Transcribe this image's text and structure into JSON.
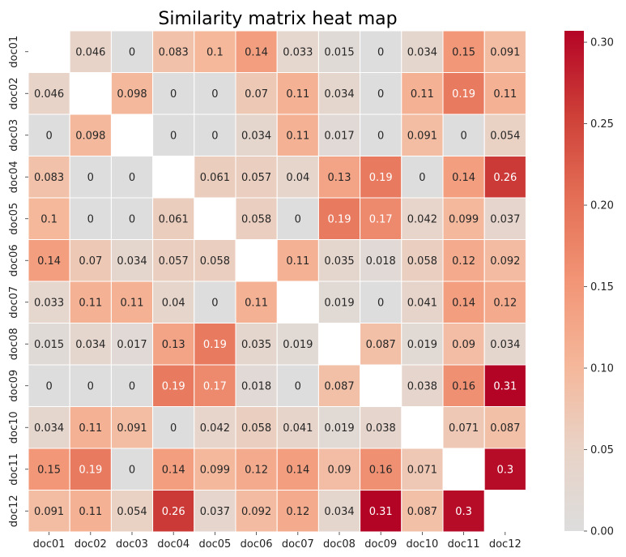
{
  "chart_data": {
    "type": "heatmap",
    "title": "Similarity matrix heat map",
    "xlabel": "",
    "ylabel": "",
    "rows": [
      "doc01",
      "doc02",
      "doc03",
      "doc04",
      "doc05",
      "doc06",
      "doc07",
      "doc08",
      "doc09",
      "doc10",
      "doc11",
      "doc12"
    ],
    "columns": [
      "doc01",
      "doc02",
      "doc03",
      "doc04",
      "doc05",
      "doc06",
      "doc07",
      "doc08",
      "doc09",
      "doc10",
      "doc11",
      "doc12"
    ],
    "values": [
      [
        null,
        0.046,
        0,
        0.083,
        0.1,
        0.14,
        0.033,
        0.015,
        0,
        0.034,
        0.15,
        0.091
      ],
      [
        0.046,
        null,
        0.098,
        0,
        0,
        0.07,
        0.11,
        0.034,
        0,
        0.11,
        0.19,
        0.11
      ],
      [
        0,
        0.098,
        null,
        0,
        0,
        0.034,
        0.11,
        0.017,
        0,
        0.091,
        0,
        0.054
      ],
      [
        0.083,
        0,
        0,
        null,
        0.061,
        0.057,
        0.04,
        0.13,
        0.19,
        0,
        0.14,
        0.26
      ],
      [
        0.1,
        0,
        0,
        0.061,
        null,
        0.058,
        0,
        0.19,
        0.17,
        0.042,
        0.099,
        0.037
      ],
      [
        0.14,
        0.07,
        0.034,
        0.057,
        0.058,
        null,
        0.11,
        0.035,
        0.018,
        0.058,
        0.12,
        0.092
      ],
      [
        0.033,
        0.11,
        0.11,
        0.04,
        0,
        0.11,
        null,
        0.019,
        0,
        0.041,
        0.14,
        0.12
      ],
      [
        0.015,
        0.034,
        0.017,
        0.13,
        0.19,
        0.035,
        0.019,
        null,
        0.087,
        0.019,
        0.09,
        0.034
      ],
      [
        0,
        0,
        0,
        0.19,
        0.17,
        0.018,
        0,
        0.087,
        null,
        0.038,
        0.16,
        0.31
      ],
      [
        0.034,
        0.11,
        0.091,
        0,
        0.042,
        0.058,
        0.041,
        0.019,
        0.038,
        null,
        0.071,
        0.087
      ],
      [
        0.15,
        0.19,
        0,
        0.14,
        0.099,
        0.12,
        0.14,
        0.09,
        0.16,
        0.071,
        null,
        0.3
      ],
      [
        0.091,
        0.11,
        0.054,
        0.26,
        0.037,
        0.092,
        0.12,
        0.034,
        0.31,
        0.087,
        0.3,
        null
      ]
    ],
    "colorbar": {
      "min": 0.0,
      "max": 0.307,
      "ticks": [
        "0.00",
        "0.05",
        "0.10",
        "0.15",
        "0.20",
        "0.25",
        "0.30"
      ],
      "colormap": "coolwarm (centered at 0)",
      "color_low": "#dddddd",
      "color_high": "#b40426"
    },
    "diagonal": "blank",
    "grid": false,
    "legend": "colorbar right"
  }
}
